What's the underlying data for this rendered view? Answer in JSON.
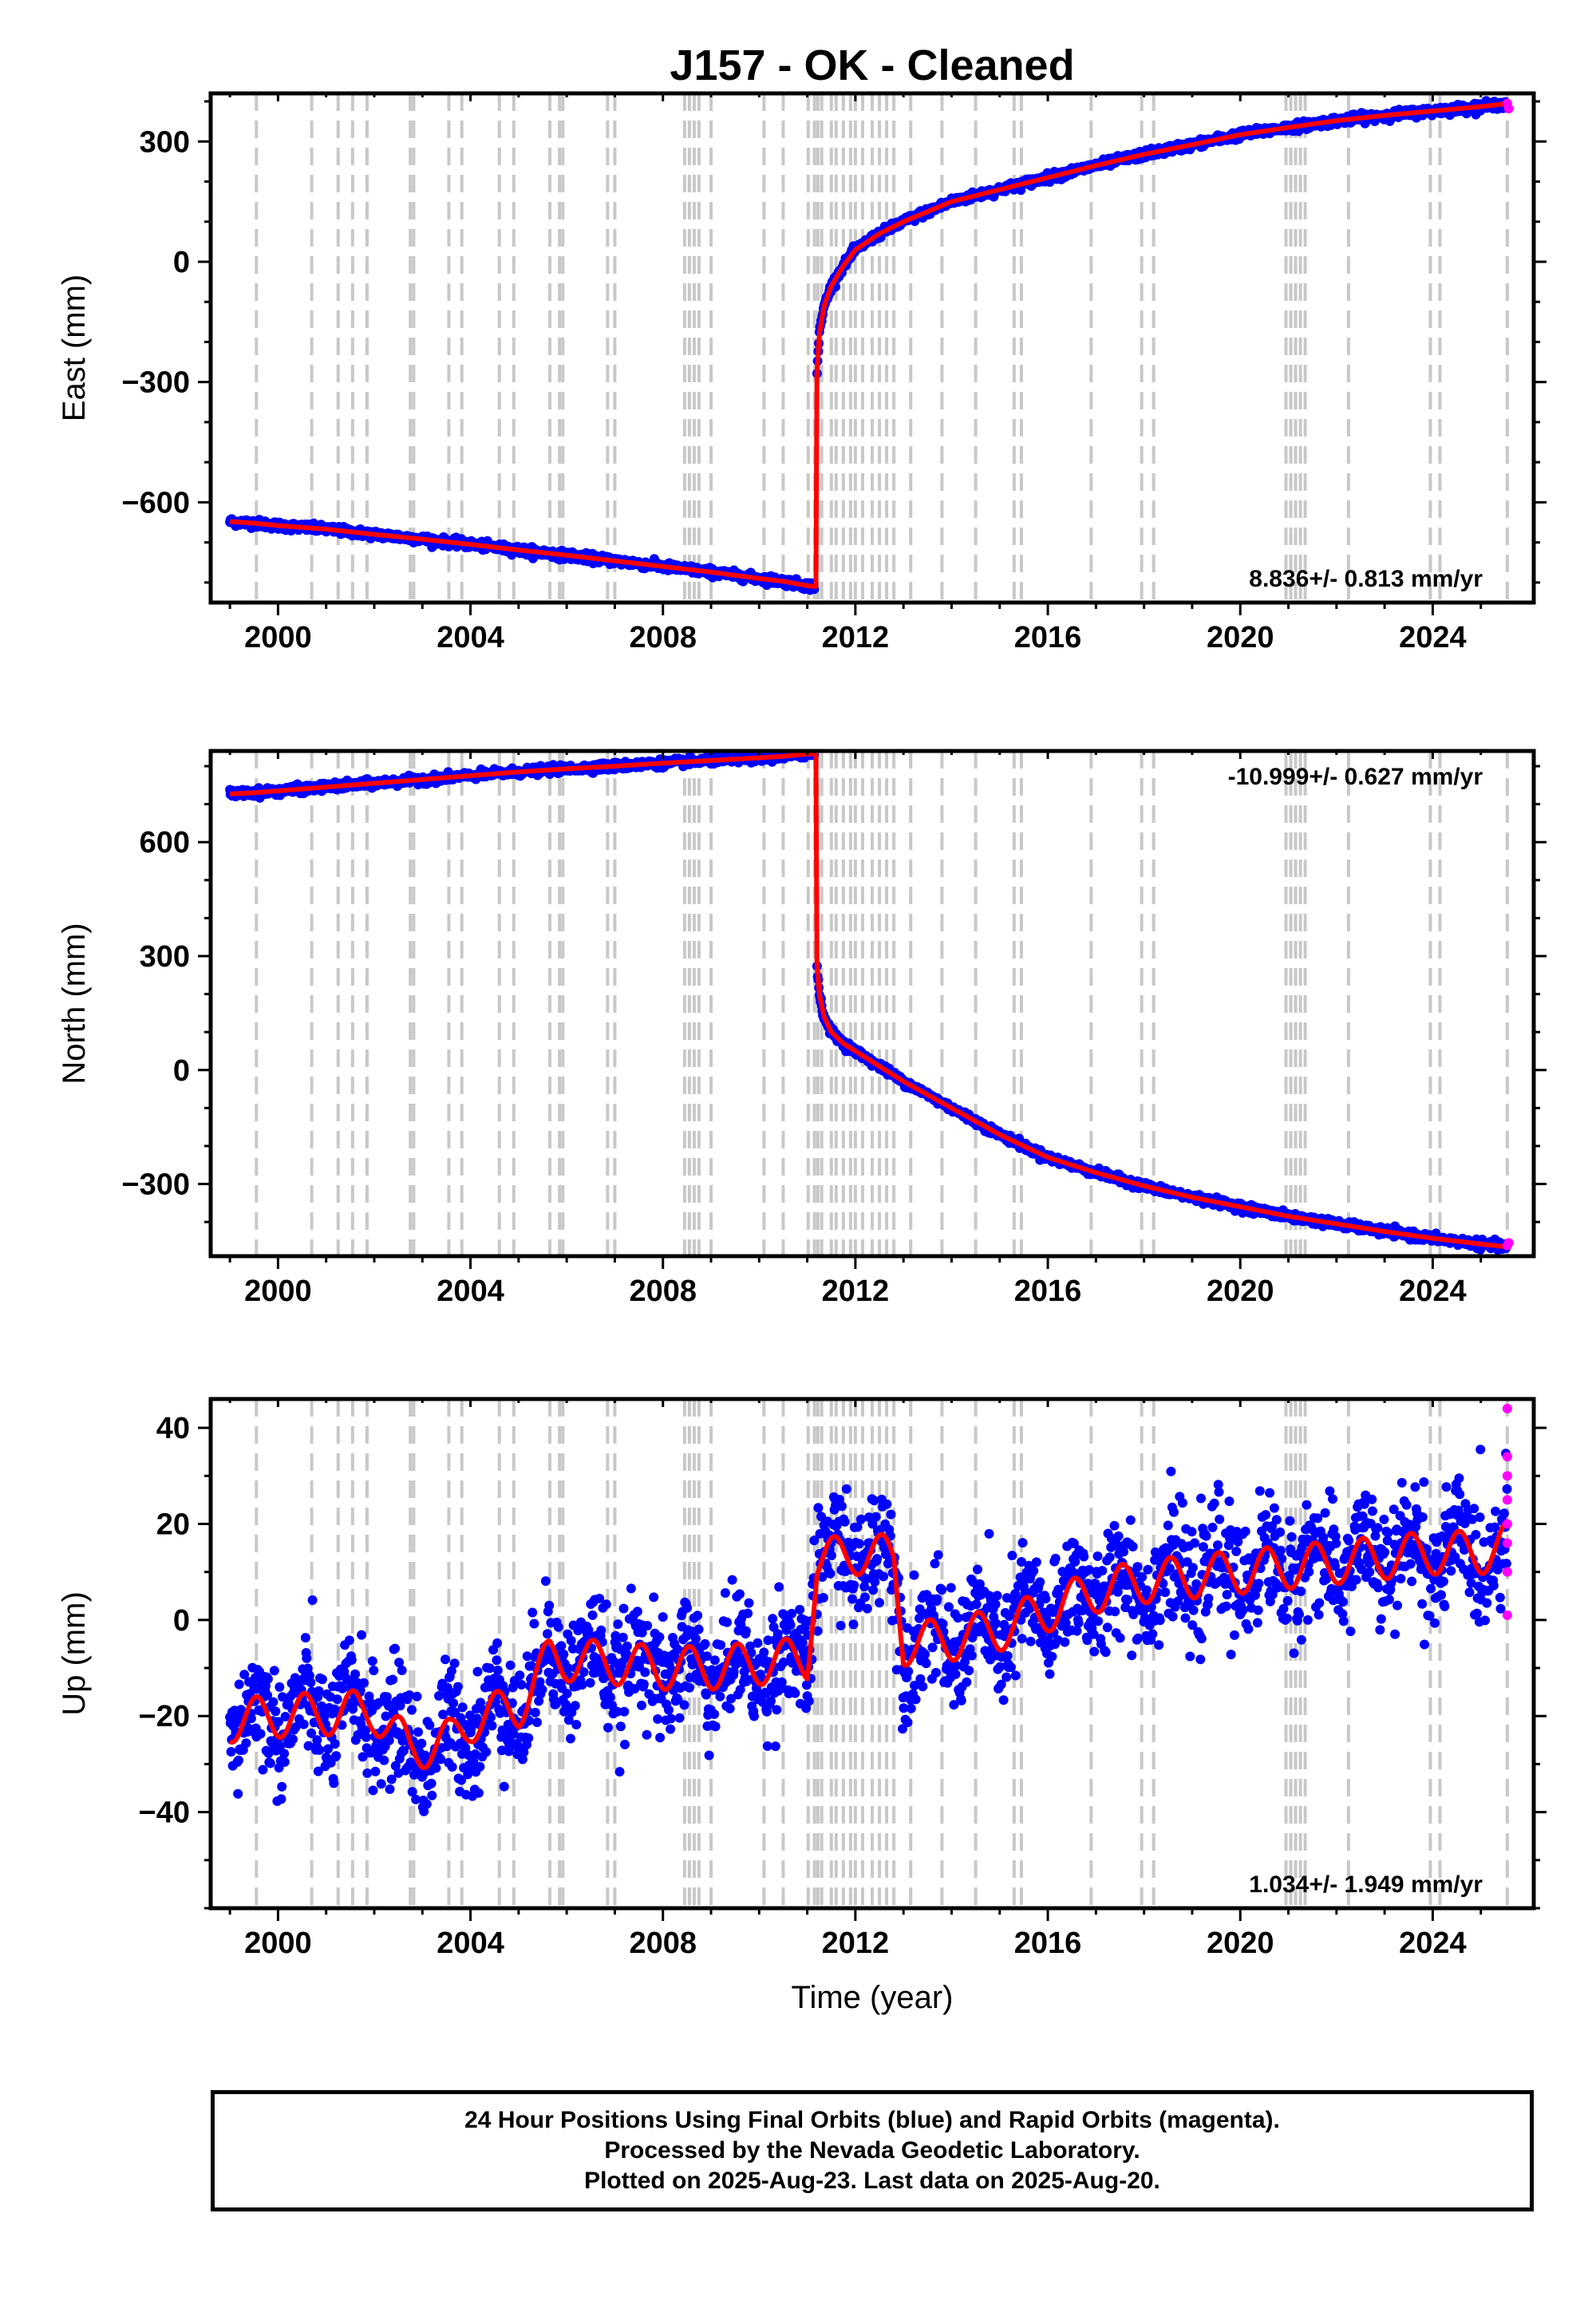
{
  "chart_data": {
    "title": "J157  - OK - Cleaned",
    "type": "scatter",
    "colors": {
      "final": "#0000ff",
      "rapid": "#ff00ff",
      "model": "#ff0000",
      "steps": "#c8c8c8",
      "frame": "#000000"
    },
    "xlabel": "Time (year)",
    "xlim": [
      1998.6,
      2026.1
    ],
    "x_ticks": [
      2000,
      2004,
      2008,
      2012,
      2016,
      2020,
      2024
    ],
    "x_minor_step": 1,
    "step_epochs": [
      1999.55,
      2000.7,
      2001.25,
      2001.55,
      2001.85,
      2002.75,
      2002.82,
      2003.55,
      2003.82,
      2004.6,
      2004.9,
      2005.65,
      2005.85,
      2005.92,
      2006.85,
      2007.0,
      2008.45,
      2008.55,
      2008.65,
      2008.75,
      2009.0,
      2010.1,
      2010.5,
      2011.02,
      2011.15,
      2011.22,
      2011.3,
      2011.5,
      2011.6,
      2011.75,
      2011.9,
      2012.0,
      2012.15,
      2012.35,
      2012.5,
      2012.65,
      2012.8,
      2013.15,
      2013.8,
      2014.5,
      2015.3,
      2015.45,
      2016.9,
      2017.95,
      2018.2,
      2020.95,
      2021.05,
      2021.15,
      2021.25,
      2021.35,
      2022.25,
      2023.95,
      2024.15,
      2025.55
    ],
    "panels": [
      {
        "name": "east",
        "ylabel": "East (mm)",
        "ylim": [
          -850,
          420
        ],
        "y_ticks": [
          -600,
          -300,
          0,
          300
        ],
        "y_tick_labels": [
          "−600",
          "−300",
          "0",
          "300"
        ],
        "y_minor_step": 100,
        "rate": "8.836+/- 0.813 mm/yr",
        "rate_position": "bottom-right",
        "model": {
          "x": [
            1999.0,
            1999.5,
            2000.0,
            2001.0,
            2002.0,
            2003.0,
            2004.0,
            2005.0,
            2006.0,
            2007.0,
            2008.0,
            2009.0,
            2010.0,
            2010.5,
            2011.0,
            2011.18,
            2011.19,
            2011.25,
            2011.35,
            2011.5,
            2011.75,
            2012.0,
            2012.5,
            2013.0,
            2014.0,
            2015.0,
            2016.0,
            2017.0,
            2018.0,
            2019.0,
            2020.0,
            2021.0,
            2022.0,
            2023.0,
            2024.0,
            2025.0,
            2025.5
          ],
          "y": [
            -648,
            -652,
            -658,
            -667,
            -680,
            -692,
            -705,
            -719,
            -732,
            -746,
            -760,
            -774,
            -790,
            -797,
            -808,
            -810,
            -300,
            -180,
            -110,
            -60,
            -10,
            30,
            70,
            100,
            150,
            180,
            210,
            240,
            268,
            292,
            317,
            335,
            352,
            365,
            376,
            387,
            394
          ]
        },
        "scatter_sd": 5,
        "rapid_points": [
          {
            "x": 2025.55,
            "y": 395
          },
          {
            "x": 2025.58,
            "y": 382
          }
        ]
      },
      {
        "name": "north",
        "ylabel": "North (mm)",
        "ylim": [
          -490,
          840
        ],
        "y_ticks": [
          -300,
          0,
          300,
          600
        ],
        "y_tick_labels": [
          "−300",
          "0",
          "300",
          "600"
        ],
        "y_minor_step": 100,
        "rate": "-10.999+/- 0.627 mm/yr",
        "rate_position": "top-right",
        "model": {
          "x": [
            1999.0,
            1999.5,
            2000.0,
            2001.0,
            2002.0,
            2003.0,
            2004.0,
            2005.0,
            2006.0,
            2007.0,
            2008.0,
            2009.0,
            2010.0,
            2010.5,
            2011.0,
            2011.18,
            2011.19,
            2011.25,
            2011.35,
            2011.5,
            2011.75,
            2012.0,
            2012.5,
            2013.0,
            2014.0,
            2015.0,
            2016.0,
            2017.0,
            2018.0,
            2019.0,
            2020.0,
            2021.0,
            2022.0,
            2023.0,
            2024.0,
            2025.0,
            2025.5
          ],
          "y": [
            727,
            730,
            735,
            745,
            755,
            765,
            775,
            785,
            793,
            800,
            808,
            815,
            822,
            826,
            832,
            833,
            300,
            200,
            140,
            100,
            70,
            50,
            10,
            -30,
            -100,
            -170,
            -230,
            -270,
            -305,
            -335,
            -360,
            -385,
            -405,
            -425,
            -443,
            -458,
            -465
          ]
        },
        "scatter_sd": 5,
        "rapid_points": [
          {
            "x": 2025.55,
            "y": -462
          },
          {
            "x": 2025.58,
            "y": -455
          }
        ]
      },
      {
        "name": "up",
        "ylabel": "Up (mm)",
        "ylim": [
          -60,
          46
        ],
        "y_ticks": [
          -40,
          -20,
          0,
          20,
          40
        ],
        "y_tick_labels": [
          "−40",
          "−20",
          "0",
          "20",
          "40"
        ],
        "y_minor_step": 10,
        "rate": "1.034+/- 1.949 mm/yr",
        "rate_position": "bottom-right",
        "model": {
          "x": [
            1999.0,
            2000.0,
            2002.0,
            2002.75,
            2003.6,
            2004.0,
            2005.0,
            2005.65,
            2007.0,
            2008.0,
            2009.0,
            2010.0,
            2011.0,
            2011.2,
            2012.0,
            2012.8,
            2013.0,
            2014.0,
            2015.0,
            2016.0,
            2017.0,
            2018.0,
            2019.0,
            2020.0,
            2021.0,
            2022.0,
            2023.0,
            2024.0,
            2025.0,
            2025.55
          ],
          "y": [
            -21,
            -20,
            -19,
            -27,
            -25,
            -21,
            -18,
            -8,
            -9,
            -10,
            -10,
            -9,
            -8,
            12,
            14,
            13,
            -5,
            -4,
            -2,
            2,
            6,
            8,
            9,
            10,
            11,
            12,
            13,
            14,
            14,
            16
          ]
        },
        "seasonal_amp": 4.5,
        "scatter_sd": 6,
        "rapid_points": [
          {
            "x": 2025.55,
            "y": 44
          },
          {
            "x": 2025.55,
            "y": 34
          },
          {
            "x": 2025.55,
            "y": 30
          },
          {
            "x": 2025.55,
            "y": 25
          },
          {
            "x": 2025.55,
            "y": 20
          },
          {
            "x": 2025.55,
            "y": 16
          },
          {
            "x": 2025.55,
            "y": 10
          },
          {
            "x": 2025.55,
            "y": 1
          }
        ]
      }
    ]
  },
  "caption": {
    "line1": "24 Hour Positions Using Final Orbits (blue) and Rapid Orbits (magenta).",
    "line2": "Processed by the Nevada Geodetic Laboratory.",
    "line3": "Plotted on 2025-Aug-23. Last data on 2025-Aug-20."
  }
}
